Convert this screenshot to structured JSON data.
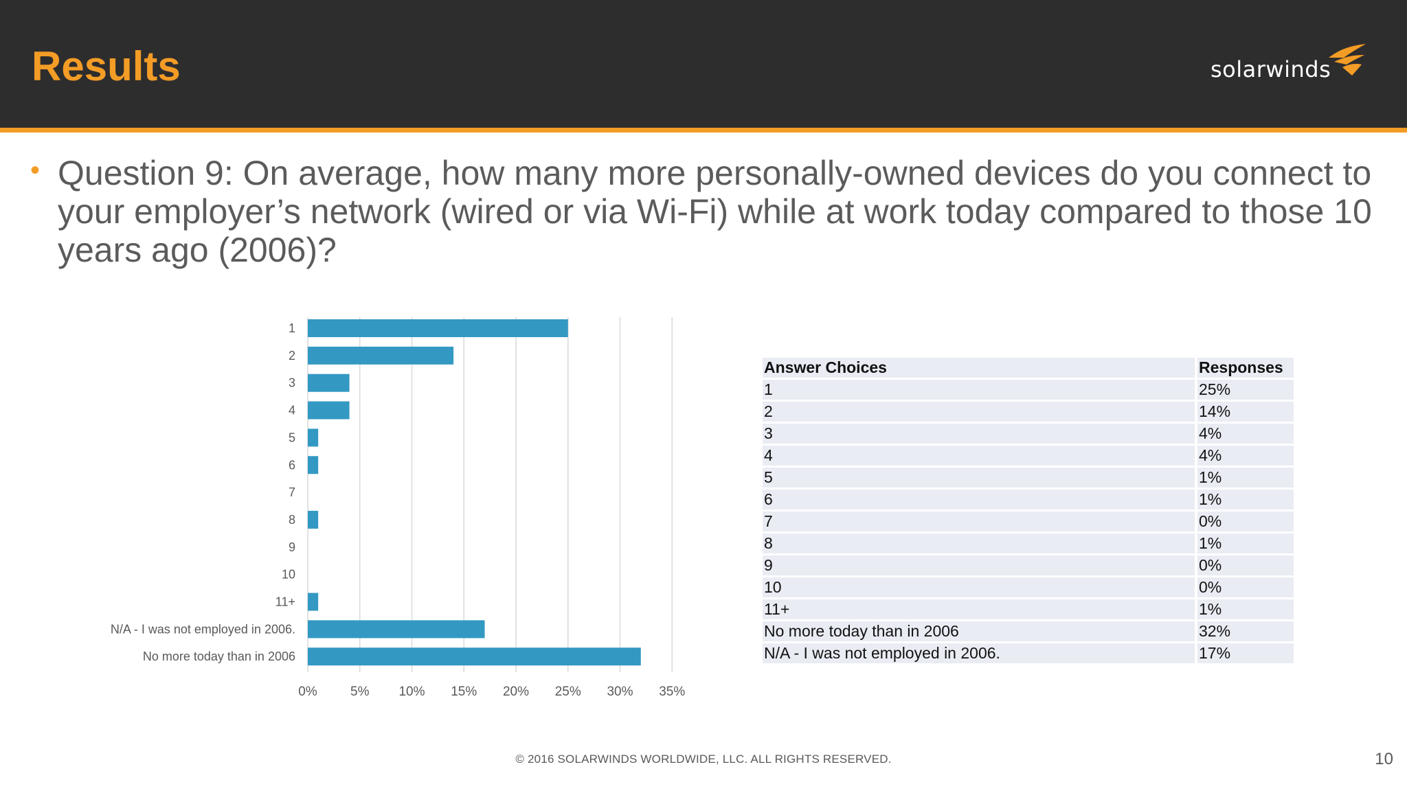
{
  "header": {
    "title": "Results",
    "logo_text": "solarwinds",
    "logo_icon": "flame-icon",
    "background_color": "#2e2d2e",
    "accent_color": "#f39c26"
  },
  "question": {
    "bullet": "•",
    "text": "Question 9: On average, how many more personally-owned devices do you connect to your employer’s network (wired or via Wi-Fi) while at work today compared to those 10 years ago (2006)?"
  },
  "chart_data": {
    "type": "bar",
    "orientation": "horizontal",
    "categories": [
      "1",
      "2",
      "3",
      "4",
      "5",
      "6",
      "7",
      "8",
      "9",
      "10",
      "11+",
      "N/A - I was not employed in 2006.",
      "No more today than in 2006"
    ],
    "values": [
      25,
      14,
      4,
      4,
      1,
      1,
      0,
      1,
      0,
      0,
      1,
      17,
      32
    ],
    "x_ticks": [
      "0%",
      "5%",
      "10%",
      "15%",
      "20%",
      "25%",
      "30%",
      "35%"
    ],
    "xlim": [
      0,
      35
    ],
    "grid": true,
    "bar_color": "#3399c3"
  },
  "table": {
    "headers": [
      "Answer Choices",
      "Responses"
    ],
    "rows": [
      [
        "1",
        "25%"
      ],
      [
        "2",
        "14%"
      ],
      [
        "3",
        "4%"
      ],
      [
        "4",
        "4%"
      ],
      [
        "5",
        "1%"
      ],
      [
        "6",
        "1%"
      ],
      [
        "7",
        "0%"
      ],
      [
        "8",
        "1%"
      ],
      [
        "9",
        "0%"
      ],
      [
        "10",
        "0%"
      ],
      [
        "11+",
        "1%"
      ],
      [
        "No more today than in 2006",
        "32%"
      ],
      [
        "N/A - I was not employed in 2006.",
        "17%"
      ]
    ]
  },
  "footer": {
    "copyright": "© 2016 SOLARWINDS WORLDWIDE, LLC. ALL RIGHTS RESERVED.",
    "page_number": "10"
  }
}
